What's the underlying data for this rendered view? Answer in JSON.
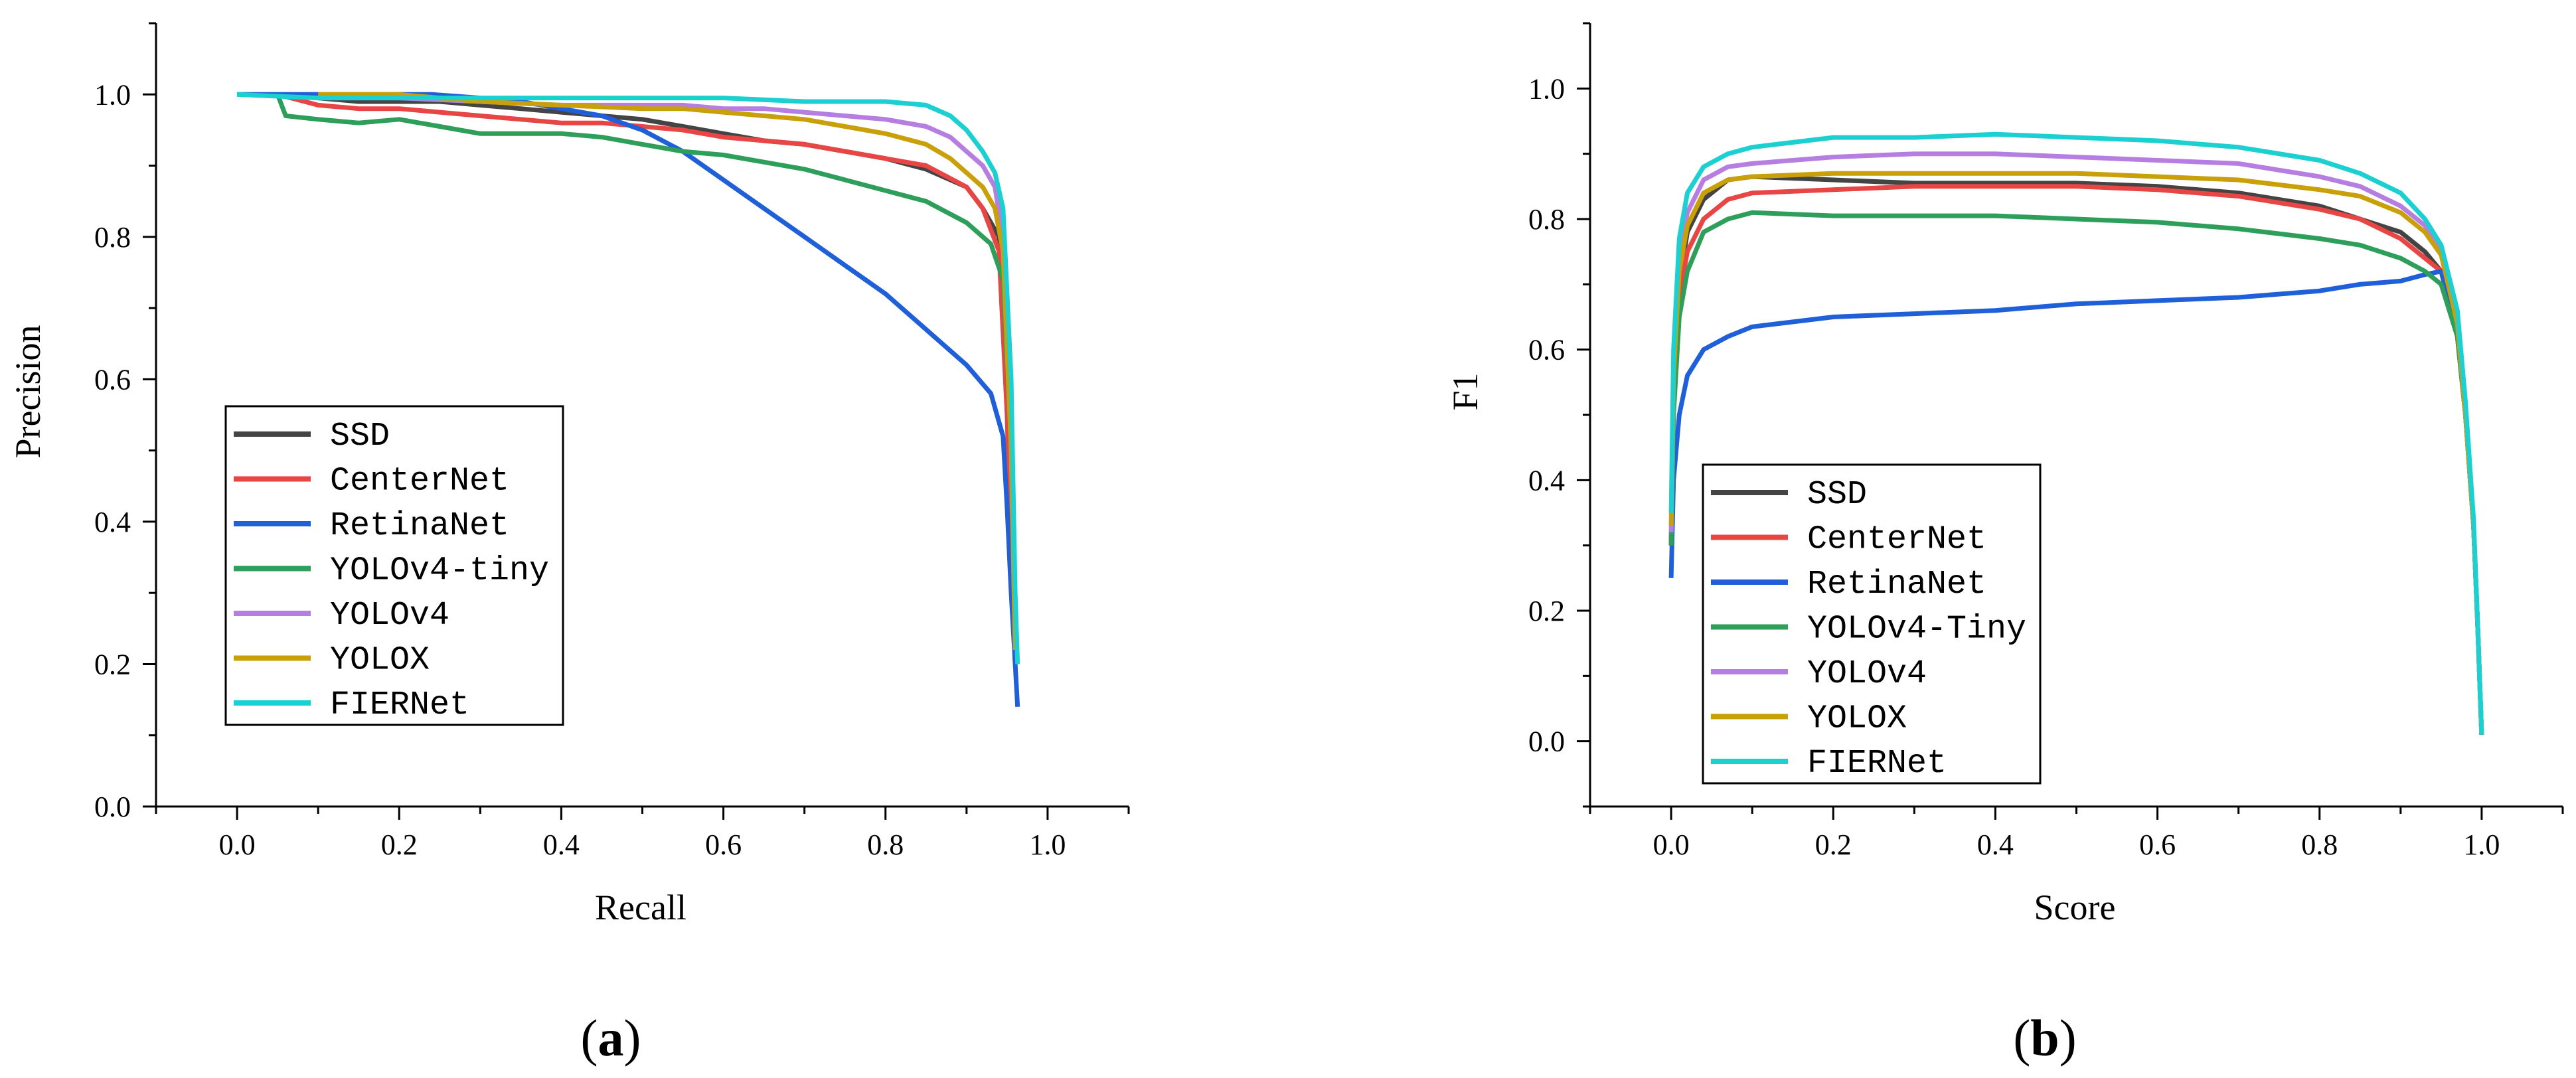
{
  "chart_data": [
    {
      "type": "line",
      "panel_label": "a",
      "xlabel": "Recall",
      "ylabel": "Precision",
      "xlim": [
        -0.1,
        1.1
      ],
      "ylim": [
        0.0,
        1.1
      ],
      "xticks": [
        "0.0",
        "0.2",
        "0.4",
        "0.6",
        "0.8",
        "1.0"
      ],
      "yticks": [
        "0.0",
        "0.2",
        "0.4",
        "0.6",
        "0.8",
        "1.0"
      ],
      "legend_position": "lower-left",
      "series": [
        {
          "name": "SSD",
          "color": "#444444",
          "x": [
            0.06,
            0.1,
            0.15,
            0.2,
            0.25,
            0.3,
            0.35,
            0.4,
            0.45,
            0.5,
            0.55,
            0.6,
            0.65,
            0.7,
            0.75,
            0.8,
            0.85,
            0.9,
            0.92,
            0.94,
            0.95,
            0.955,
            0.96
          ],
          "y": [
            1.0,
            0.995,
            0.99,
            0.99,
            0.99,
            0.985,
            0.98,
            0.975,
            0.97,
            0.965,
            0.955,
            0.945,
            0.935,
            0.93,
            0.92,
            0.91,
            0.895,
            0.87,
            0.84,
            0.8,
            0.6,
            0.35,
            0.2
          ]
        },
        {
          "name": "CenterNet",
          "color": "#e84545",
          "x": [
            0.05,
            0.1,
            0.15,
            0.2,
            0.25,
            0.3,
            0.35,
            0.4,
            0.45,
            0.5,
            0.55,
            0.6,
            0.65,
            0.7,
            0.75,
            0.8,
            0.85,
            0.9,
            0.92,
            0.94,
            0.95,
            0.955,
            0.96
          ],
          "y": [
            1.0,
            0.985,
            0.98,
            0.98,
            0.975,
            0.97,
            0.965,
            0.96,
            0.96,
            0.955,
            0.95,
            0.94,
            0.935,
            0.93,
            0.92,
            0.91,
            0.9,
            0.87,
            0.84,
            0.78,
            0.55,
            0.35,
            0.2
          ]
        },
        {
          "name": "RetinaNet",
          "color": "#1f5fd8",
          "x": [
            0.0,
            0.1,
            0.2,
            0.24,
            0.3,
            0.35,
            0.4,
            0.45,
            0.5,
            0.55,
            0.6,
            0.65,
            0.7,
            0.75,
            0.8,
            0.85,
            0.9,
            0.93,
            0.945,
            0.95,
            0.955,
            0.96,
            0.963
          ],
          "y": [
            1.0,
            1.0,
            1.0,
            1.0,
            0.995,
            0.99,
            0.98,
            0.97,
            0.95,
            0.92,
            0.88,
            0.84,
            0.8,
            0.76,
            0.72,
            0.67,
            0.62,
            0.58,
            0.52,
            0.42,
            0.3,
            0.2,
            0.14
          ]
        },
        {
          "name": "YOLOv4-tiny",
          "color": "#2e9e5b",
          "x": [
            0.05,
            0.06,
            0.1,
            0.15,
            0.2,
            0.25,
            0.3,
            0.35,
            0.4,
            0.45,
            0.5,
            0.55,
            0.6,
            0.65,
            0.7,
            0.75,
            0.8,
            0.85,
            0.9,
            0.93,
            0.945,
            0.955,
            0.96
          ],
          "y": [
            1.0,
            0.97,
            0.965,
            0.96,
            0.965,
            0.955,
            0.945,
            0.945,
            0.945,
            0.94,
            0.93,
            0.92,
            0.915,
            0.905,
            0.895,
            0.88,
            0.865,
            0.85,
            0.82,
            0.79,
            0.74,
            0.5,
            0.25
          ]
        },
        {
          "name": "YOLOv4",
          "color": "#b57ee0",
          "x": [
            0.1,
            0.2,
            0.3,
            0.4,
            0.5,
            0.55,
            0.6,
            0.65,
            0.7,
            0.75,
            0.8,
            0.85,
            0.88,
            0.9,
            0.92,
            0.935,
            0.945,
            0.955,
            0.96
          ],
          "y": [
            0.995,
            0.995,
            0.99,
            0.985,
            0.985,
            0.985,
            0.98,
            0.98,
            0.975,
            0.97,
            0.965,
            0.955,
            0.94,
            0.92,
            0.9,
            0.87,
            0.8,
            0.55,
            0.25
          ]
        },
        {
          "name": "YOLOX",
          "color": "#c9a00a",
          "x": [
            0.1,
            0.2,
            0.3,
            0.4,
            0.5,
            0.55,
            0.6,
            0.65,
            0.7,
            0.75,
            0.8,
            0.85,
            0.88,
            0.9,
            0.92,
            0.935,
            0.945,
            0.955,
            0.96
          ],
          "y": [
            1.0,
            1.0,
            0.99,
            0.985,
            0.98,
            0.98,
            0.975,
            0.97,
            0.965,
            0.955,
            0.945,
            0.93,
            0.91,
            0.89,
            0.87,
            0.84,
            0.78,
            0.5,
            0.22
          ]
        },
        {
          "name": "FIERNet",
          "color": "#1ccfd1",
          "x": [
            0.0,
            0.1,
            0.2,
            0.3,
            0.4,
            0.5,
            0.6,
            0.7,
            0.8,
            0.85,
            0.88,
            0.9,
            0.92,
            0.935,
            0.945,
            0.955,
            0.96,
            0.963
          ],
          "y": [
            1.0,
            0.995,
            0.995,
            0.995,
            0.995,
            0.995,
            0.995,
            0.99,
            0.99,
            0.985,
            0.97,
            0.95,
            0.92,
            0.89,
            0.84,
            0.6,
            0.3,
            0.2
          ]
        }
      ]
    },
    {
      "type": "line",
      "panel_label": "b",
      "xlabel": "Score",
      "ylabel": "F1",
      "xlim": [
        -0.1,
        1.1
      ],
      "ylim": [
        -0.1,
        1.1
      ],
      "xticks": [
        "0.0",
        "0.2",
        "0.4",
        "0.6",
        "0.8",
        "1.0"
      ],
      "yticks": [
        "0.0",
        "0.2",
        "0.4",
        "0.6",
        "0.8",
        "1.0"
      ],
      "legend_position": "lower-left",
      "series": [
        {
          "name": "SSD",
          "color": "#444444",
          "x": [
            0.0,
            0.003,
            0.01,
            0.02,
            0.04,
            0.07,
            0.1,
            0.2,
            0.3,
            0.4,
            0.5,
            0.6,
            0.7,
            0.8,
            0.85,
            0.9,
            0.93,
            0.95,
            0.97,
            0.98,
            0.99,
            0.995,
            1.0
          ],
          "y": [
            0.3,
            0.55,
            0.7,
            0.78,
            0.83,
            0.86,
            0.865,
            0.86,
            0.855,
            0.855,
            0.855,
            0.85,
            0.84,
            0.82,
            0.8,
            0.78,
            0.75,
            0.72,
            0.62,
            0.5,
            0.33,
            0.18,
            0.01
          ]
        },
        {
          "name": "CenterNet",
          "color": "#e84545",
          "x": [
            0.0,
            0.003,
            0.01,
            0.02,
            0.04,
            0.07,
            0.1,
            0.2,
            0.3,
            0.4,
            0.5,
            0.6,
            0.7,
            0.8,
            0.85,
            0.9,
            0.93,
            0.95,
            0.97,
            0.98,
            0.99,
            0.995,
            1.0
          ],
          "y": [
            0.3,
            0.52,
            0.68,
            0.75,
            0.8,
            0.83,
            0.84,
            0.845,
            0.85,
            0.85,
            0.85,
            0.845,
            0.835,
            0.815,
            0.8,
            0.77,
            0.74,
            0.72,
            0.62,
            0.5,
            0.33,
            0.18,
            0.01
          ]
        },
        {
          "name": "RetinaNet",
          "color": "#1f5fd8",
          "x": [
            0.0,
            0.003,
            0.01,
            0.02,
            0.04,
            0.07,
            0.1,
            0.2,
            0.3,
            0.4,
            0.5,
            0.6,
            0.7,
            0.8,
            0.85,
            0.9,
            0.93,
            0.95,
            0.97,
            0.98,
            0.99,
            0.995,
            1.0
          ],
          "y": [
            0.25,
            0.4,
            0.5,
            0.56,
            0.6,
            0.62,
            0.635,
            0.65,
            0.655,
            0.66,
            0.67,
            0.675,
            0.68,
            0.69,
            0.7,
            0.705,
            0.715,
            0.72,
            0.63,
            0.5,
            0.33,
            0.18,
            0.01
          ]
        },
        {
          "name": "YOLOv4-Tiny",
          "color": "#2e9e5b",
          "x": [
            0.0,
            0.003,
            0.01,
            0.02,
            0.04,
            0.07,
            0.1,
            0.2,
            0.3,
            0.4,
            0.5,
            0.6,
            0.7,
            0.8,
            0.85,
            0.9,
            0.93,
            0.95,
            0.97,
            0.98,
            0.99,
            0.995,
            1.0
          ],
          "y": [
            0.3,
            0.5,
            0.65,
            0.72,
            0.78,
            0.8,
            0.81,
            0.805,
            0.805,
            0.805,
            0.8,
            0.795,
            0.785,
            0.77,
            0.76,
            0.74,
            0.72,
            0.7,
            0.62,
            0.5,
            0.33,
            0.18,
            0.01
          ]
        },
        {
          "name": "YOLOv4",
          "color": "#b57ee0",
          "x": [
            0.0,
            0.003,
            0.01,
            0.02,
            0.04,
            0.07,
            0.1,
            0.2,
            0.3,
            0.4,
            0.5,
            0.6,
            0.7,
            0.8,
            0.85,
            0.9,
            0.93,
            0.95,
            0.97,
            0.98,
            0.99,
            0.995,
            1.0
          ],
          "y": [
            0.32,
            0.56,
            0.74,
            0.81,
            0.86,
            0.88,
            0.885,
            0.895,
            0.9,
            0.9,
            0.895,
            0.89,
            0.885,
            0.865,
            0.85,
            0.82,
            0.79,
            0.75,
            0.64,
            0.5,
            0.33,
            0.18,
            0.01
          ]
        },
        {
          "name": "YOLOX",
          "color": "#c9a00a",
          "x": [
            0.0,
            0.003,
            0.01,
            0.02,
            0.04,
            0.07,
            0.1,
            0.2,
            0.3,
            0.4,
            0.5,
            0.6,
            0.7,
            0.8,
            0.85,
            0.9,
            0.93,
            0.95,
            0.97,
            0.98,
            0.99,
            0.995,
            1.0
          ],
          "y": [
            0.33,
            0.56,
            0.72,
            0.79,
            0.84,
            0.86,
            0.865,
            0.87,
            0.87,
            0.87,
            0.87,
            0.865,
            0.86,
            0.845,
            0.835,
            0.81,
            0.78,
            0.745,
            0.64,
            0.5,
            0.33,
            0.18,
            0.01
          ]
        },
        {
          "name": "FIERNet",
          "color": "#1ccfd1",
          "x": [
            0.0,
            0.003,
            0.01,
            0.02,
            0.04,
            0.07,
            0.1,
            0.2,
            0.3,
            0.4,
            0.5,
            0.6,
            0.7,
            0.8,
            0.85,
            0.9,
            0.93,
            0.95,
            0.97,
            0.98,
            0.99,
            0.995,
            1.0
          ],
          "y": [
            0.35,
            0.6,
            0.77,
            0.84,
            0.88,
            0.9,
            0.91,
            0.925,
            0.925,
            0.93,
            0.925,
            0.92,
            0.91,
            0.89,
            0.87,
            0.84,
            0.8,
            0.76,
            0.66,
            0.52,
            0.34,
            0.18,
            0.01
          ]
        }
      ]
    }
  ]
}
